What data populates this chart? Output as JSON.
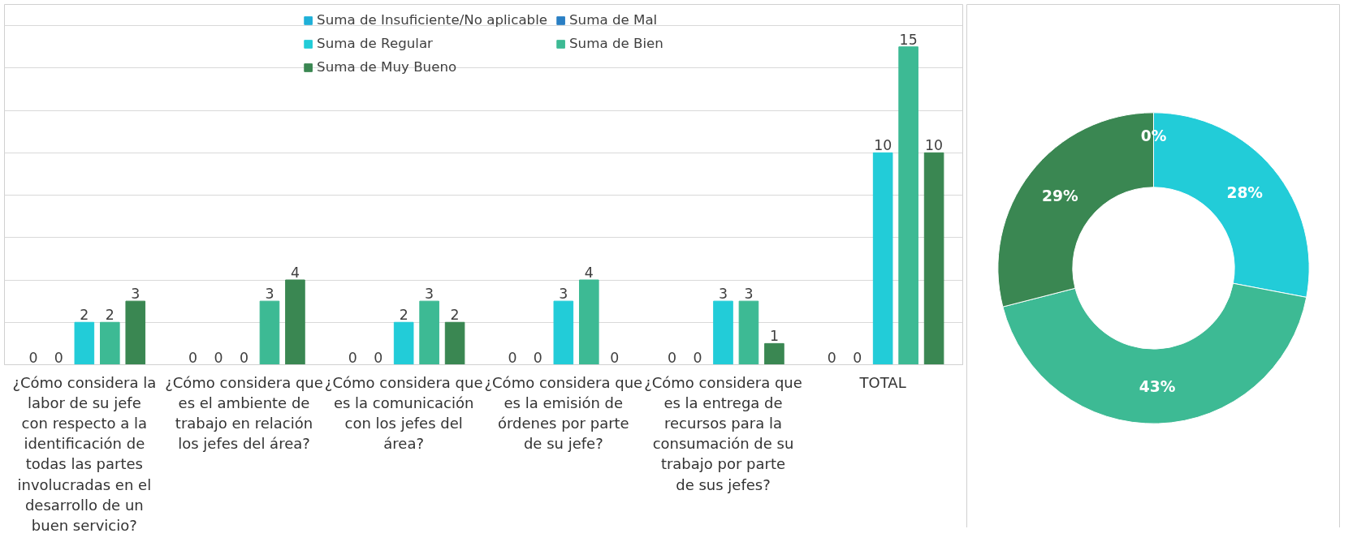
{
  "chart_data": [
    {
      "type": "bar",
      "categories": [
        "¿Cómo considera la labor de su jefe con respecto a la identificación de todas las partes involucradas en el desarrollo de un buen servicio?",
        "¿Cómo considera que es el ambiente de trabajo en relación los jefes del área?",
        "¿Cómo considera que es la comunicación con los jefes del área?",
        "¿Cómo considera que es la emisión de órdenes por parte de su jefe?",
        "¿Cómo considera que es la entrega de recursos para la consumación de su trabajo por parte de sus jefes?",
        "TOTAL"
      ],
      "series": [
        {
          "name": "Suma de Insuficiente/No aplicable",
          "color": "#1fb0d8",
          "values": [
            0,
            0,
            0,
            0,
            0,
            0
          ]
        },
        {
          "name": "Suma de Mal",
          "color": "#2a7fc4",
          "values": [
            0,
            0,
            0,
            0,
            0,
            0
          ]
        },
        {
          "name": "Suma de Regular",
          "color": "#22ccd8",
          "values": [
            2,
            0,
            2,
            3,
            3,
            10
          ]
        },
        {
          "name": "Suma de Bien",
          "color": "#3dba94",
          "values": [
            2,
            3,
            3,
            4,
            3,
            15
          ]
        },
        {
          "name": "Suma de Muy Bueno",
          "color": "#3a8752",
          "values": [
            3,
            4,
            2,
            0,
            1,
            10
          ]
        }
      ],
      "ylim": [
        0,
        17
      ],
      "yticks": [
        {
          "value": 0,
          "label": null
        },
        {
          "value": 2,
          "label": null
        },
        {
          "value": 4,
          "label": null
        },
        {
          "value": 6,
          "label": null
        },
        {
          "value": 8,
          "label": null
        },
        {
          "value": 10,
          "label": null
        },
        {
          "value": 12,
          "label": null
        },
        {
          "value": 14,
          "label": null
        },
        {
          "value": 16,
          "label": null
        }
      ],
      "tick_labels": "x",
      "grid": "y",
      "legend": "top",
      "data_labels": true
    },
    {
      "type": "donut",
      "categories": [
        null,
        null,
        null,
        null
      ],
      "values": [
        0,
        28,
        43,
        29
      ],
      "colors": [
        "#2a7fc4",
        "#22ccd8",
        "#3dba94",
        "#3a8752"
      ],
      "value_labels": [
        "0%",
        "28%",
        "43%",
        "29%"
      ]
    }
  ]
}
